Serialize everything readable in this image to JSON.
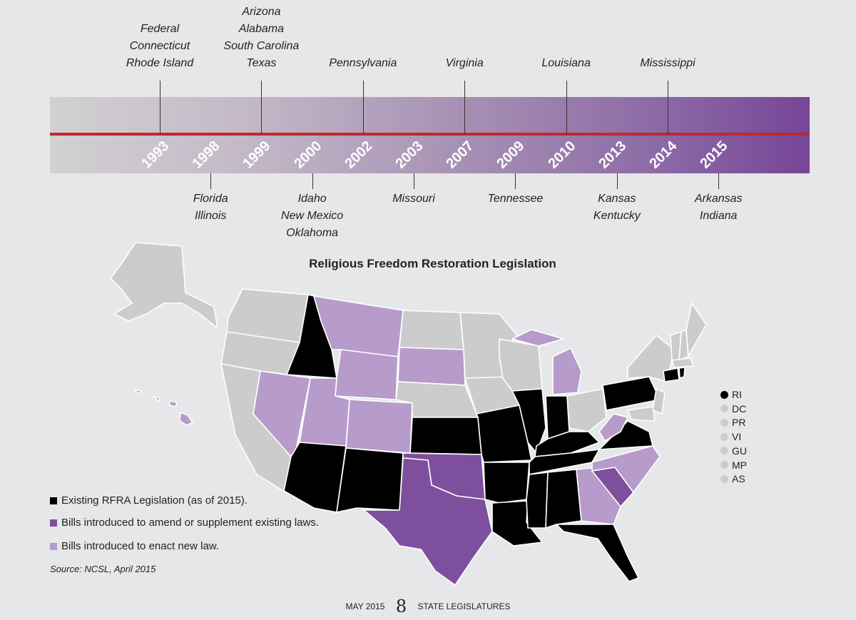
{
  "timeline": {
    "years": [
      "1993",
      "1998",
      "1999",
      "2000",
      "2002",
      "2003",
      "2007",
      "2009",
      "2010",
      "2013",
      "2014",
      "2015"
    ],
    "above": [
      {
        "year": "1993",
        "lines": [
          "Federal",
          "Connecticut",
          "Rhode Island"
        ]
      },
      {
        "year": "1999",
        "lines": [
          "Arizona",
          "Alabama",
          "South Carolina",
          "Texas"
        ]
      },
      {
        "year": "2002",
        "lines": [
          "Pennsylvania"
        ]
      },
      {
        "year": "2007",
        "lines": [
          "Virginia"
        ]
      },
      {
        "year": "2010",
        "lines": [
          "Louisiana"
        ]
      },
      {
        "year": "2014",
        "lines": [
          "Mississippi"
        ]
      }
    ],
    "below": [
      {
        "year": "1998",
        "lines": [
          "Florida",
          "Illinois"
        ]
      },
      {
        "year": "2000",
        "lines": [
          "Idaho",
          "New Mexico",
          "Oklahoma"
        ]
      },
      {
        "year": "2003",
        "lines": [
          "Missouri"
        ]
      },
      {
        "year": "2009",
        "lines": [
          "Tennessee"
        ]
      },
      {
        "year": "2013",
        "lines": [
          "Kansas",
          "Kentucky"
        ]
      },
      {
        "year": "2015",
        "lines": [
          "Arkansas",
          "Indiana"
        ]
      }
    ],
    "colors": {
      "line": "#c0282d",
      "start": "#d2d1d2",
      "end": "#774596"
    }
  },
  "map": {
    "title": "Religious Freedom Restoration Legislation",
    "colors": {
      "existing": "#000000",
      "amend": "#7e4f9d",
      "new_law": "#b69bcb",
      "none": "#cccccc"
    },
    "states": {
      "existing": [
        "Idaho",
        "Arizona",
        "New Mexico",
        "Kansas",
        "Missouri",
        "Arkansas",
        "Louisiana",
        "Mississippi",
        "Alabama",
        "Florida",
        "Illinois",
        "Indiana",
        "Kentucky",
        "Tennessee",
        "Virginia",
        "Pennsylvania",
        "Connecticut",
        "Rhode Island"
      ],
      "amend": [
        "Texas",
        "Oklahoma",
        "South Carolina"
      ],
      "new_law": [
        "Montana",
        "Wyoming",
        "Nevada",
        "Utah",
        "Colorado",
        "South Dakota",
        "Michigan",
        "West Virginia",
        "North Carolina",
        "Georgia",
        "Hawaii"
      ]
    }
  },
  "legend": [
    {
      "label": "Existing RFRA Legislation (as of 2015).",
      "color": "#000000"
    },
    {
      "label": "Bills introduced to amend or supplement existing laws.",
      "color": "#7e4f9d"
    },
    {
      "label": "Bills introduced to enact new law.",
      "color": "#b69bcb"
    }
  ],
  "territories": [
    {
      "label": "RI",
      "color": "#000000"
    },
    {
      "label": "DC",
      "color": "#cccccc"
    },
    {
      "label": "PR",
      "color": "#cccccc"
    },
    {
      "label": "VI",
      "color": "#cccccc"
    },
    {
      "label": "GU",
      "color": "#cccccc"
    },
    {
      "label": "MP",
      "color": "#cccccc"
    },
    {
      "label": "AS",
      "color": "#cccccc"
    }
  ],
  "source": "Source: NCSL, April 2015",
  "footer": {
    "left": "MAY 2015",
    "page": "8",
    "right": "STATE LEGISLATURES"
  }
}
